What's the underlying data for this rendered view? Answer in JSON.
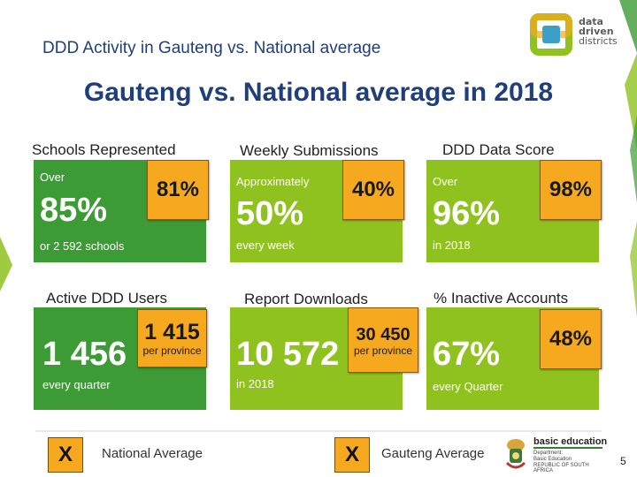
{
  "header": {
    "subtitle": "DDD Activity in Gauteng vs. National average",
    "logo_text": [
      "data",
      "driven",
      "districts"
    ]
  },
  "main_title": "Gauteng vs. National average in 2018",
  "cards": [
    {
      "title": "Schools Represented",
      "prefix": "Over",
      "value": "85%",
      "suffix": "or 2 592 schools",
      "badge": "81%",
      "badge_sub": ""
    },
    {
      "title": "Weekly Submissions",
      "prefix": "Approximately",
      "value": "50%",
      "suffix": "every week",
      "badge": "40%",
      "badge_sub": ""
    },
    {
      "title": "DDD Data Score",
      "prefix": "Over",
      "value": "96%",
      "suffix": "in 2018",
      "badge": "98%",
      "badge_sub": ""
    },
    {
      "title": "Active DDD Users",
      "prefix": "",
      "value": "1 456",
      "suffix": "every quarter",
      "badge": "1 415",
      "badge_sub": "per province"
    },
    {
      "title": "Report Downloads",
      "prefix": "",
      "value": "10 572",
      "suffix": "in 2018",
      "badge": "30 450",
      "badge_sub": "per province"
    },
    {
      "title": "% Inactive Accounts",
      "prefix": "",
      "value": "67%",
      "suffix": "every Quarter",
      "badge": "48%",
      "badge_sub": ""
    }
  ],
  "legend": {
    "x_symbol": "X",
    "national_label": "National Average",
    "gauteng_label": "Gauteng Average"
  },
  "footer": {
    "brand_title": "basic education",
    "brand_lines": [
      "Department:",
      "Basic Education",
      "REPUBLIC OF SOUTH AFRICA"
    ],
    "page_number": "5"
  },
  "colors": {
    "dark_green": "#3c9b35",
    "light_green": "#8fc21f",
    "badge_orange": "#f6a81e",
    "title_blue": "#1f3f7a"
  }
}
